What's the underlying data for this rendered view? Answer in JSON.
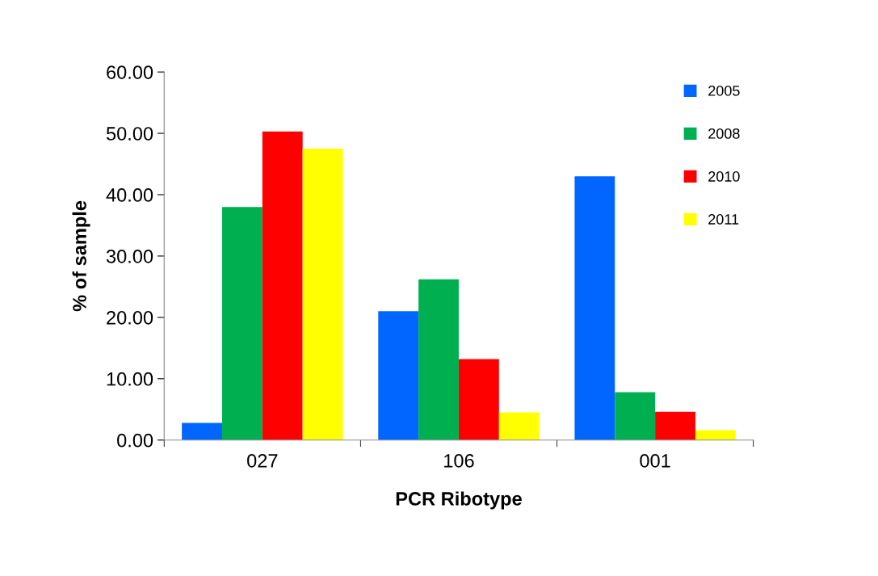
{
  "chart_data": {
    "type": "bar",
    "xlabel": "PCR Ribotype",
    "ylabel": "% of sample",
    "categories": [
      "027",
      "106",
      "001"
    ],
    "series": [
      {
        "name": "2005",
        "color": "#0066ff",
        "values": [
          2.8,
          21.0,
          43.0
        ]
      },
      {
        "name": "2008",
        "color": "#00b050",
        "values": [
          38.0,
          26.2,
          7.8
        ]
      },
      {
        "name": "2010",
        "color": "#ff0000",
        "values": [
          50.3,
          13.2,
          4.6
        ]
      },
      {
        "name": "2011",
        "color": "#ffff00",
        "values": [
          47.5,
          4.5,
          1.6
        ]
      }
    ],
    "ylim": [
      0,
      60
    ],
    "yticks": [
      {
        "value": 0,
        "label": "0.00"
      },
      {
        "value": 10,
        "label": "10.00"
      },
      {
        "value": 20,
        "label": "20.00"
      },
      {
        "value": 30,
        "label": "30.00"
      },
      {
        "value": 40,
        "label": "40.00"
      },
      {
        "value": 50,
        "label": "50.00"
      },
      {
        "value": 60,
        "label": "60.00"
      }
    ],
    "legend": "top right",
    "grid": false
  }
}
